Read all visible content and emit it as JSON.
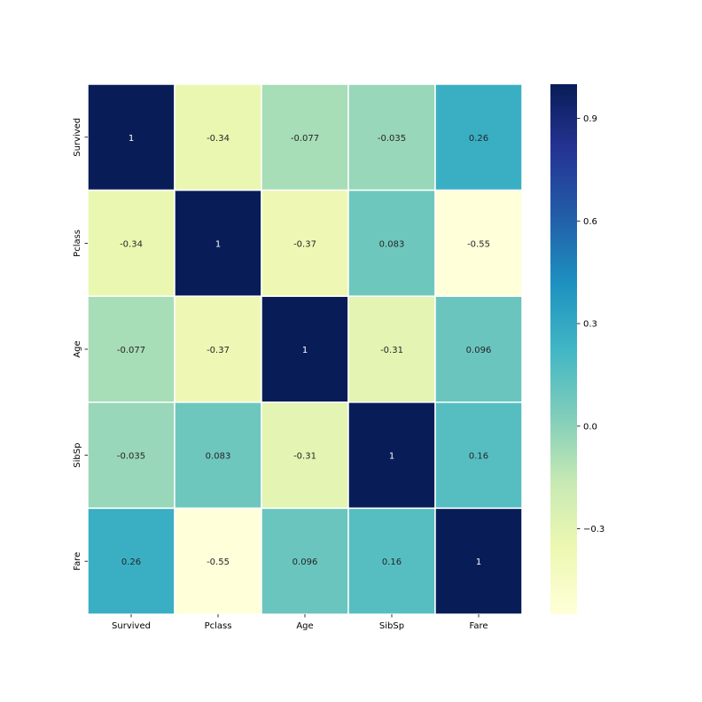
{
  "chart_data": {
    "type": "heatmap",
    "title": "",
    "xlabel": "",
    "ylabel": "",
    "x_categories": [
      "Survived",
      "Pclass",
      "Age",
      "SibSp",
      "Fare"
    ],
    "y_categories": [
      "Survived",
      "Pclass",
      "Age",
      "SibSp",
      "Fare"
    ],
    "values": [
      [
        1,
        -0.34,
        -0.077,
        -0.035,
        0.26
      ],
      [
        -0.34,
        1,
        -0.37,
        0.083,
        -0.55
      ],
      [
        -0.077,
        -0.37,
        1,
        -0.31,
        0.096
      ],
      [
        -0.035,
        0.083,
        -0.31,
        1,
        0.16
      ],
      [
        0.26,
        -0.55,
        0.096,
        0.16,
        1
      ]
    ],
    "annotations": [
      [
        "1",
        "-0.34",
        "-0.077",
        "-0.035",
        "0.26"
      ],
      [
        "-0.34",
        "1",
        "-0.37",
        "0.083",
        "-0.55"
      ],
      [
        "-0.077",
        "-0.37",
        "1",
        "-0.31",
        "0.096"
      ],
      [
        "-0.035",
        "0.083",
        "-0.31",
        "1",
        "0.16"
      ],
      [
        "0.26",
        "-0.55",
        "0.096",
        "0.16",
        "1"
      ]
    ],
    "colorbar": {
      "vmin": -0.55,
      "vmax": 1,
      "ticks": [
        0.9,
        0.6,
        0.3,
        0.0,
        -0.3
      ],
      "tick_labels": [
        "0.9",
        "0.6",
        "0.3",
        "0.0",
        "−0.3"
      ],
      "colormap": "YlGnBu",
      "stops": [
        "#ffffd9",
        "#edf8b1",
        "#c7e9b4",
        "#7fcdbb",
        "#41b6c4",
        "#1d91c0",
        "#225ea8",
        "#253494",
        "#081d58"
      ]
    },
    "cell_border_color": "#ffffff",
    "grid": false,
    "legend": "none"
  }
}
